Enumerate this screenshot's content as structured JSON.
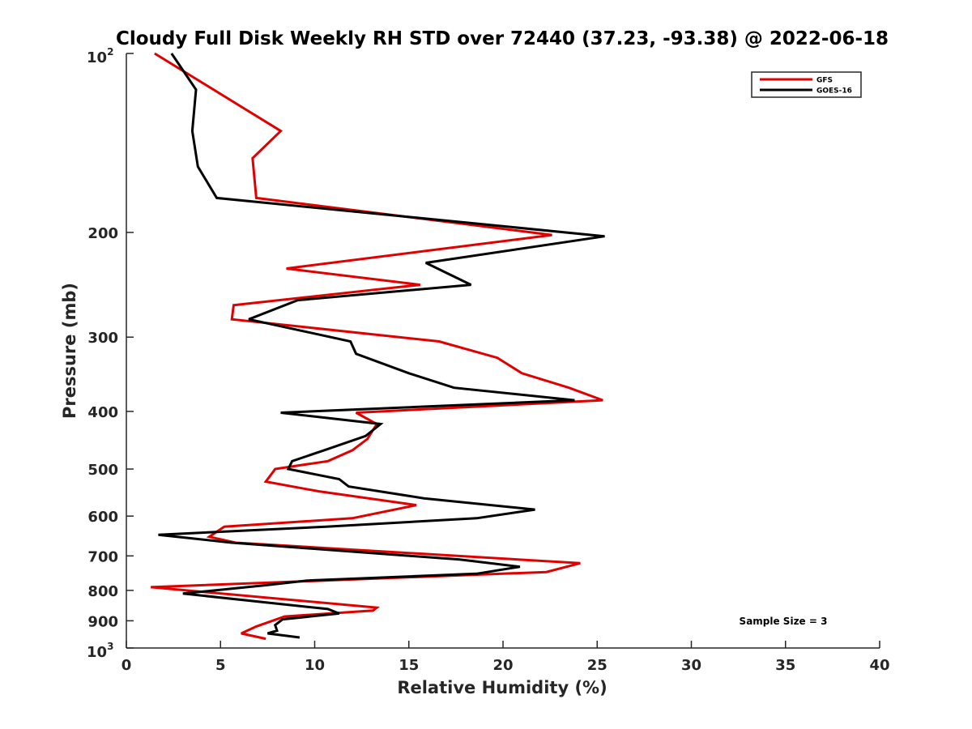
{
  "chart_data": {
    "type": "line",
    "title": "Cloudy Full Disk Weekly RH STD over 72440 (37.23, -93.38) @ 2022-06-18",
    "xlabel": "Relative Humidity (%)",
    "ylabel": "Pressure (mb)",
    "xlim": [
      0,
      40
    ],
    "ylim": [
      100,
      1000
    ],
    "y_scale": "log",
    "y_reversed": true,
    "grid": false,
    "legend_position": "top-right",
    "x_ticks": [
      "0",
      "5",
      "10",
      "15",
      "20",
      "25",
      "30",
      "35",
      "40"
    ],
    "y_ticks": [
      {
        "value": 100,
        "base": "10",
        "exp": "2"
      },
      {
        "value": 200,
        "label": "200"
      },
      {
        "value": 300,
        "label": "300"
      },
      {
        "value": 400,
        "label": "400"
      },
      {
        "value": 500,
        "label": "500"
      },
      {
        "value": 600,
        "label": "600"
      },
      {
        "value": 700,
        "label": "700"
      },
      {
        "value": 800,
        "label": "800"
      },
      {
        "value": 900,
        "label": "900"
      },
      {
        "value": 1000,
        "base": "10",
        "exp": "3"
      }
    ],
    "annotation": "Sample Size = 3",
    "series": [
      {
        "name": "GFS",
        "color": "#e00000",
        "points": [
          [
            1.5,
            100
          ],
          [
            8.2,
            135
          ],
          [
            6.7,
            150
          ],
          [
            6.9,
            175
          ],
          [
            22.6,
            202
          ],
          [
            8.5,
            230
          ],
          [
            15.6,
            245
          ],
          [
            5.7,
            265
          ],
          [
            5.6,
            280
          ],
          [
            16.6,
            305
          ],
          [
            19.7,
            325
          ],
          [
            21.0,
            345
          ],
          [
            23.5,
            365
          ],
          [
            25.3,
            383
          ],
          [
            12.2,
            402
          ],
          [
            13.3,
            420
          ],
          [
            12.8,
            445
          ],
          [
            12.0,
            465
          ],
          [
            10.7,
            485
          ],
          [
            7.9,
            500
          ],
          [
            7.8,
            505
          ],
          [
            7.4,
            525
          ],
          [
            10.2,
            545
          ],
          [
            15.4,
            575
          ],
          [
            12.0,
            605
          ],
          [
            5.2,
            625
          ],
          [
            4.4,
            650
          ],
          [
            5.8,
            665
          ],
          [
            24.1,
            720
          ],
          [
            22.3,
            745
          ],
          [
            1.3,
            790
          ],
          [
            13.3,
            855
          ],
          [
            13.1,
            865
          ],
          [
            8.4,
            885
          ],
          [
            6.9,
            920
          ],
          [
            6.1,
            945
          ],
          [
            7.4,
            965
          ]
        ]
      },
      {
        "name": "GOES-16",
        "color": "#000000",
        "points": [
          [
            2.4,
            100
          ],
          [
            3.7,
            115
          ],
          [
            3.5,
            135
          ],
          [
            3.8,
            155
          ],
          [
            4.8,
            175
          ],
          [
            25.4,
            203
          ],
          [
            15.9,
            225
          ],
          [
            18.3,
            245
          ],
          [
            9.1,
            260
          ],
          [
            6.5,
            280
          ],
          [
            11.9,
            305
          ],
          [
            12.2,
            320
          ],
          [
            15.0,
            345
          ],
          [
            17.4,
            365
          ],
          [
            23.8,
            383
          ],
          [
            8.2,
            402
          ],
          [
            13.5,
            420
          ],
          [
            12.7,
            440
          ],
          [
            10.5,
            465
          ],
          [
            8.8,
            485
          ],
          [
            8.6,
            500
          ],
          [
            11.3,
            520
          ],
          [
            11.8,
            535
          ],
          [
            15.8,
            560
          ],
          [
            21.7,
            585
          ],
          [
            18.6,
            605
          ],
          [
            10.6,
            625
          ],
          [
            1.7,
            645
          ],
          [
            5.6,
            665
          ],
          [
            17.7,
            710
          ],
          [
            20.9,
            730
          ],
          [
            18.6,
            750
          ],
          [
            9.6,
            770
          ],
          [
            7.3,
            785
          ],
          [
            3.0,
            810
          ],
          [
            10.7,
            860
          ],
          [
            11.3,
            875
          ],
          [
            8.3,
            895
          ],
          [
            7.9,
            915
          ],
          [
            8.0,
            935
          ],
          [
            7.5,
            945
          ],
          [
            9.2,
            960
          ]
        ]
      }
    ]
  }
}
